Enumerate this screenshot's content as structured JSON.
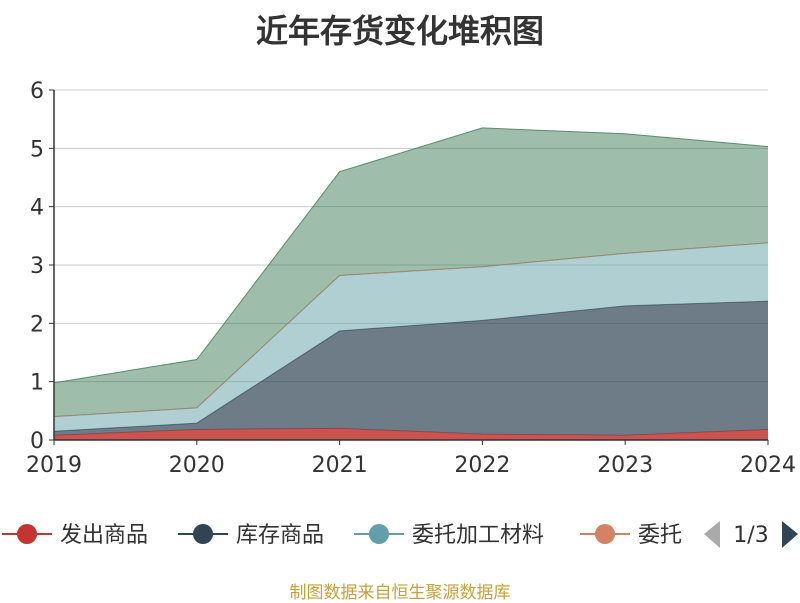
{
  "title": "近年存货变化堆积图",
  "source_note": "制图数据来自恒生聚源数据库",
  "legend": {
    "items": [
      "发出商品",
      "库存商品",
      "委托加工材料",
      "委托"
    ],
    "page_indicator": "1/3"
  },
  "chart_data": {
    "type": "area",
    "stacked": true,
    "title": "近年存货变化堆积图",
    "x": [
      "2019",
      "2020",
      "2021",
      "2022",
      "2023",
      "2024"
    ],
    "ylim": [
      0,
      6
    ],
    "yticks": [
      "0",
      "1",
      "2",
      "3",
      "4",
      "5",
      "6"
    ],
    "grid": true,
    "legend_position": "bottom",
    "series": [
      {
        "name": "发出商品",
        "color": "#c23531",
        "values": [
          0.08,
          0.18,
          0.2,
          0.1,
          0.08,
          0.18
        ]
      },
      {
        "name": "库存商品",
        "color": "#2f4554",
        "values": [
          0.07,
          0.11,
          1.67,
          1.95,
          2.22,
          2.2
        ]
      },
      {
        "name": "委托加工材料",
        "color": "#61a0a8",
        "values": [
          0.25,
          0.26,
          0.95,
          0.92,
          0.9,
          1.0
        ]
      },
      {
        "name": "委托",
        "color": "#d48265",
        "values": [
          0.0,
          0.0,
          0.0,
          0.0,
          0.0,
          0.0
        ]
      },
      {
        "name": "",
        "color": "#3d7b58",
        "values": [
          0.58,
          0.83,
          1.78,
          2.38,
          2.05,
          1.65
        ]
      }
    ]
  }
}
